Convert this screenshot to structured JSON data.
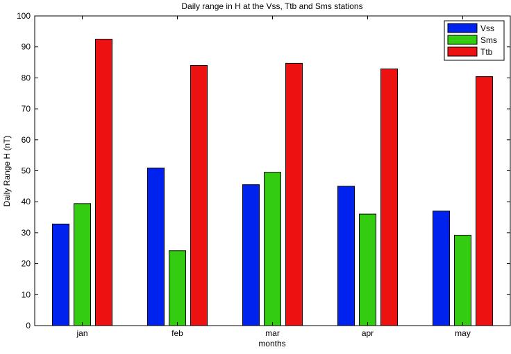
{
  "chart_data": {
    "type": "bar",
    "title": "Daily range in H at the Vss, Ttb and Sms stations",
    "xlabel": "months",
    "ylabel": "Daily Range H (nT)",
    "categories": [
      "jan",
      "feb",
      "mar",
      "apr",
      "may"
    ],
    "series": [
      {
        "name": "Vss",
        "color": "#0022ee",
        "values": [
          32.8,
          50.9,
          45.5,
          45.0,
          37.0
        ]
      },
      {
        "name": "Sms",
        "color": "#33cc11",
        "values": [
          39.4,
          24.2,
          49.5,
          36.0,
          29.2
        ]
      },
      {
        "name": "Ttb",
        "color": "#ee1111",
        "values": [
          92.5,
          84.0,
          84.7,
          82.9,
          80.4
        ]
      }
    ],
    "ylim": [
      0,
      100
    ],
    "yticks": [
      0,
      10,
      20,
      30,
      40,
      50,
      60,
      70,
      80,
      90,
      100
    ],
    "grid": false,
    "legend_position": "top-right"
  }
}
